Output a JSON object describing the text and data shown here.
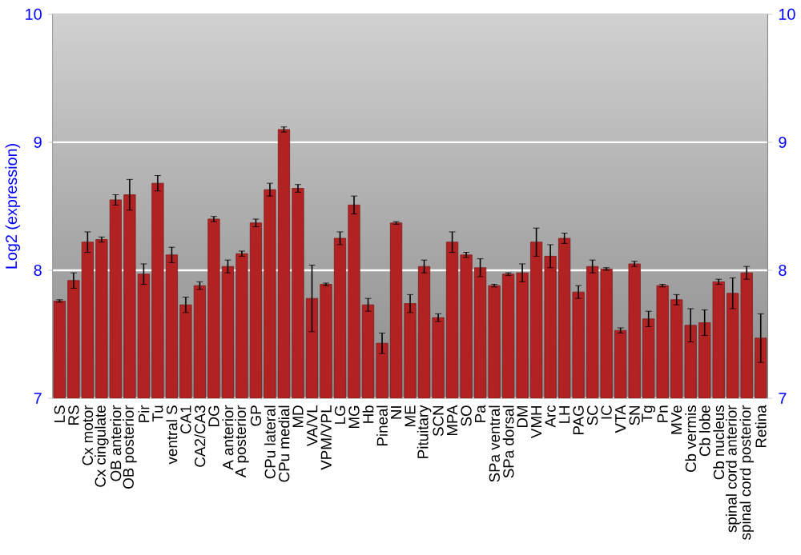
{
  "chart_data": {
    "type": "bar",
    "ylabel": "Log2 (expression)",
    "color": "#b22222",
    "categories": [
      "LS",
      "RS",
      "Cx motor",
      "Cx cingulate",
      "OB anterior",
      "OB posterior",
      "Pir",
      "Tu",
      "ventral S",
      "CA1",
      "CA2/CA3",
      "DG",
      "A anterior",
      "A posterior",
      "GP",
      "CPu lateral",
      "CPu medial",
      "MD",
      "VA/VL",
      "VPM/VPL",
      "LG",
      "MG",
      "Hb",
      "Pineal",
      "NI",
      "ME",
      "Pituitary",
      "SCN",
      "MPA",
      "SO",
      "Pa",
      "SPa ventral",
      "SPa dorsal",
      "DM",
      "VMH",
      "Arc",
      "LH",
      "PAG",
      "SC",
      "IC",
      "VTA",
      "SN",
      "Tg",
      "Pn",
      "MVe",
      "Cb vermis",
      "Cb lobe",
      "Cb nucleus",
      "spinal cord anterior",
      "spinal cord posterior",
      "Retina"
    ],
    "values": [
      7.76,
      7.92,
      8.22,
      8.24,
      8.55,
      8.59,
      7.97,
      8.68,
      8.12,
      7.73,
      7.88,
      8.4,
      8.03,
      8.13,
      8.37,
      8.63,
      9.1,
      8.64,
      7.78,
      7.89,
      8.25,
      8.51,
      7.73,
      7.43,
      8.37,
      7.74,
      8.03,
      7.63,
      8.22,
      8.12,
      8.02,
      7.88,
      7.97,
      7.98,
      8.22,
      8.11,
      8.25,
      7.83,
      8.03,
      8.01,
      7.53,
      8.05,
      7.62,
      7.88,
      7.77,
      7.57,
      7.59,
      7.91,
      7.82,
      7.98,
      7.47
    ],
    "errors": [
      0.01,
      0.06,
      0.08,
      0.02,
      0.04,
      0.12,
      0.08,
      0.06,
      0.06,
      0.06,
      0.03,
      0.02,
      0.05,
      0.02,
      0.03,
      0.05,
      0.02,
      0.03,
      0.26,
      0.01,
      0.05,
      0.07,
      0.05,
      0.08,
      0.01,
      0.07,
      0.05,
      0.03,
      0.08,
      0.02,
      0.07,
      0.01,
      0.01,
      0.07,
      0.11,
      0.09,
      0.04,
      0.05,
      0.05,
      0.01,
      0.02,
      0.02,
      0.06,
      0.01,
      0.04,
      0.13,
      0.1,
      0.02,
      0.12,
      0.05,
      0.19
    ],
    "ylim": [
      7,
      10
    ],
    "yticks": [
      7,
      8,
      9,
      10
    ],
    "y2lim": [
      7,
      10
    ],
    "y2ticks": [
      7,
      8,
      9,
      10
    ],
    "grid": "y"
  }
}
